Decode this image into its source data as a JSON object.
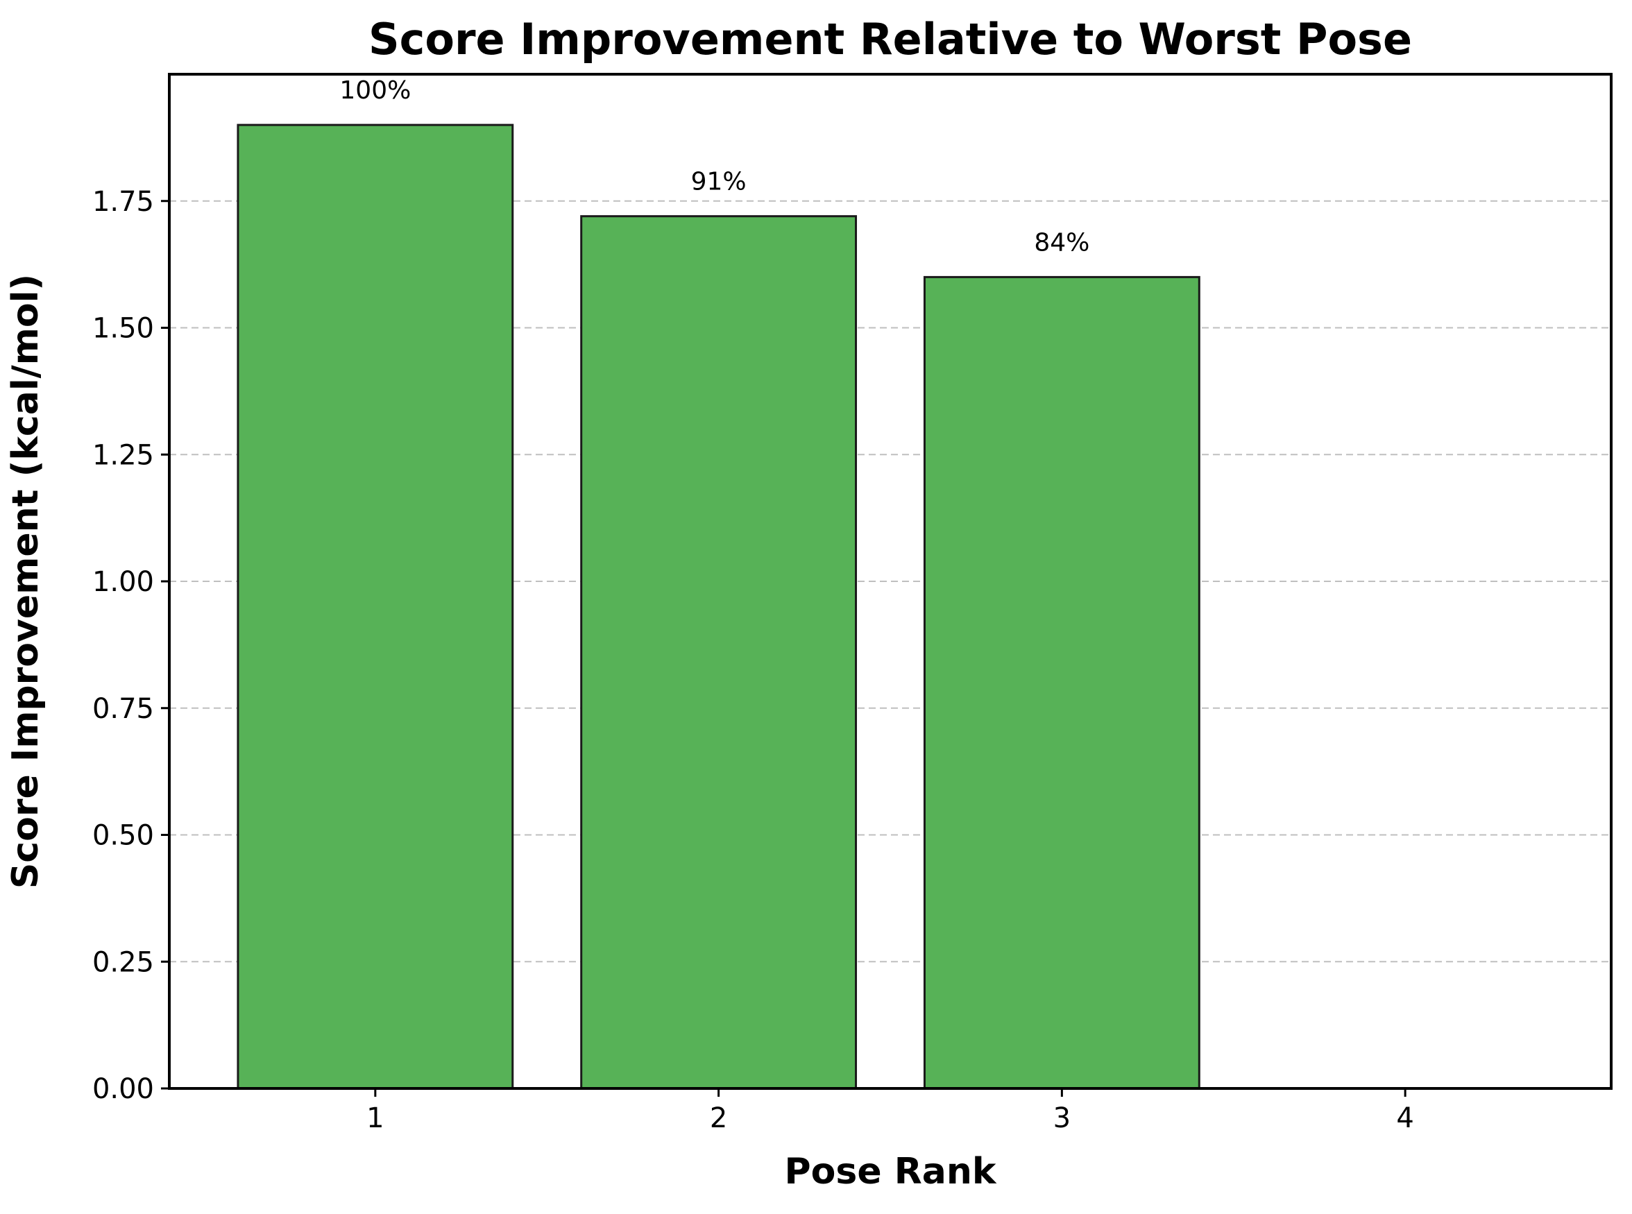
{
  "chart_data": {
    "type": "bar",
    "title": "Score Improvement Relative to Worst Pose",
    "xlabel": "Pose Rank",
    "ylabel": "Score Improvement (kcal/mol)",
    "categories": [
      "1",
      "2",
      "3",
      "4"
    ],
    "values": [
      1.9,
      1.72,
      1.6,
      0.0
    ],
    "data_labels": [
      "100%",
      "91%",
      "84%",
      ""
    ],
    "ylim": [
      0,
      2.0
    ],
    "yticks": [
      0.0,
      0.25,
      0.5,
      0.75,
      1.0,
      1.25,
      1.5,
      1.75
    ],
    "ytick_labels": [
      "0.00",
      "0.25",
      "0.50",
      "0.75",
      "1.00",
      "1.25",
      "1.50",
      "1.75"
    ],
    "xlim": [
      0.4,
      4.6
    ],
    "grid": "y-dashed",
    "colors": {
      "bar_fill": "#57b257",
      "bar_edge": "#1a1a1a",
      "grid": "#bfbfbf",
      "axis": "#000000"
    }
  }
}
